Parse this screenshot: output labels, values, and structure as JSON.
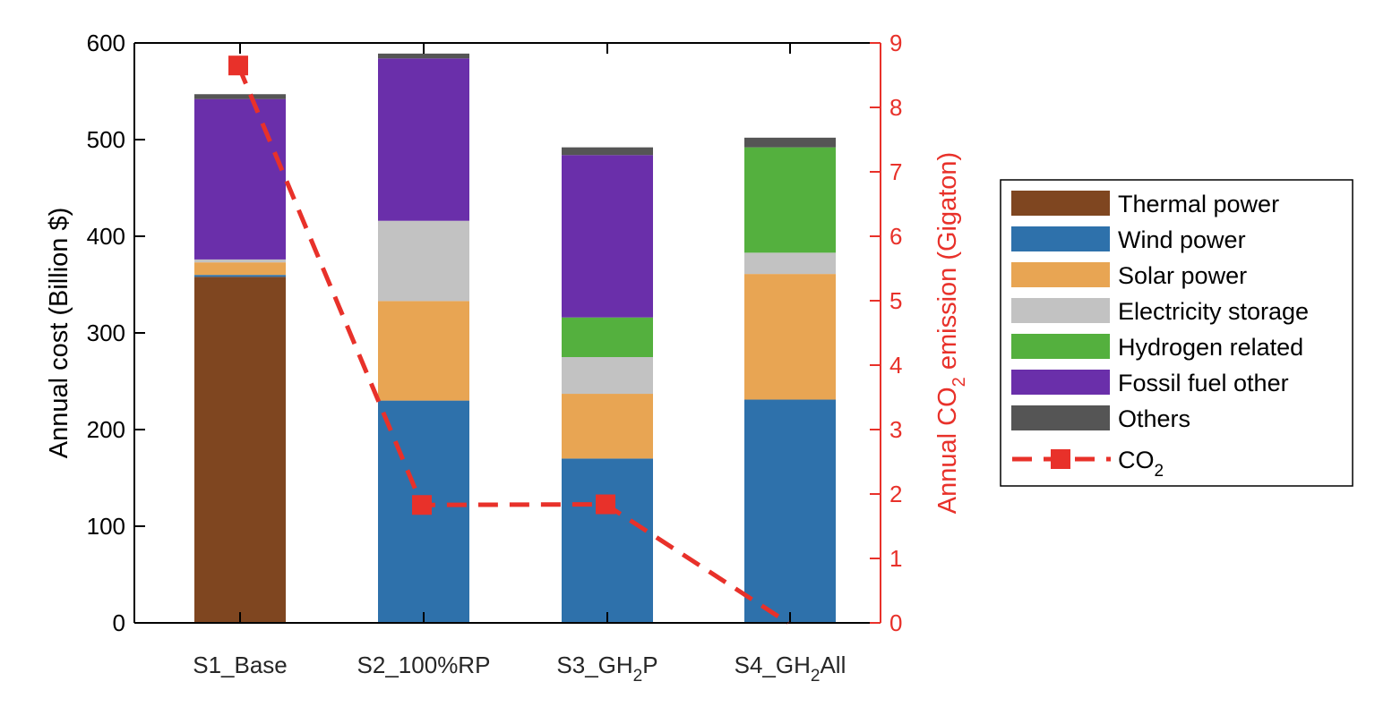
{
  "chart_data": {
    "type": "bar",
    "stacked": true,
    "categories": [
      {
        "base": "S1_Base",
        "sub": "",
        "tail": ""
      },
      {
        "base": "S2_100%RP",
        "sub": "",
        "tail": ""
      },
      {
        "base": "S3_GH",
        "sub": "2",
        "tail": "P"
      },
      {
        "base": "S4_GH",
        "sub": "2",
        "tail": "All"
      }
    ],
    "series": [
      {
        "name": "Thermal power",
        "color": "#7f4620",
        "values": [
          358,
          0,
          0,
          0
        ]
      },
      {
        "name": "Wind power",
        "color": "#2e71ab",
        "values": [
          2,
          230,
          170,
          231
        ]
      },
      {
        "name": "Solar power",
        "color": "#e8a553",
        "values": [
          13,
          103,
          67,
          130
        ]
      },
      {
        "name": "Electricity storage",
        "color": "#c2c2c2",
        "values": [
          3,
          83,
          38,
          22
        ]
      },
      {
        "name": "Hydrogen related",
        "color": "#54b03e",
        "values": [
          0,
          0,
          41,
          109
        ]
      },
      {
        "name": "Fossil fuel other",
        "color": "#6a2faa",
        "values": [
          166,
          168,
          168,
          0
        ]
      },
      {
        "name": "Others",
        "color": "#555555",
        "values": [
          5,
          5,
          8,
          10
        ]
      }
    ],
    "line_series": {
      "name_base": "CO",
      "name_sub": "2",
      "color": "#e8312a",
      "axis": "right",
      "values": [
        8.65,
        1.83,
        1.84,
        0.0
      ]
    },
    "left_axis": {
      "label": "Annual cost (Billion $)",
      "ylim": [
        0,
        600
      ],
      "ticks": [
        "0",
        "100",
        "200",
        "300",
        "400",
        "500",
        "600"
      ]
    },
    "right_axis": {
      "label_pre": "Annual CO",
      "label_sub": "2",
      "label_post": " emission (Gigaton)",
      "ylim": [
        0,
        9
      ],
      "ticks": [
        "0",
        "1",
        "2",
        "3",
        "4",
        "5",
        "6",
        "7",
        "8",
        "9"
      ],
      "color": "#e8312a"
    },
    "legend_position": "right",
    "grid": false
  }
}
